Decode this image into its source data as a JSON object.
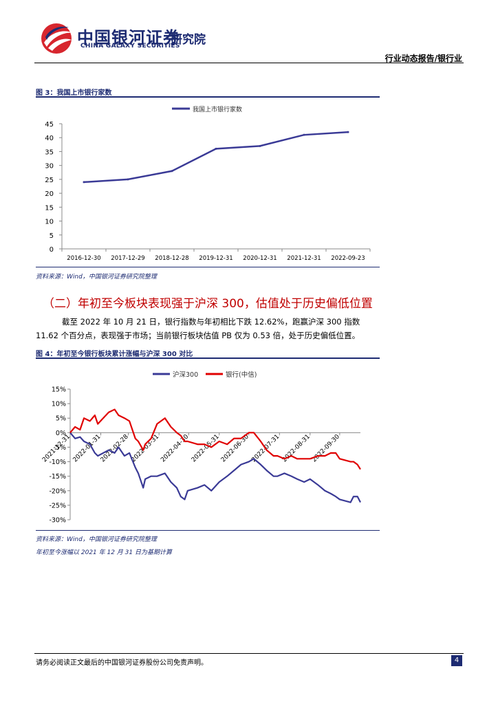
{
  "header": {
    "company_cn": "中国银河证券",
    "company_en": "CHINA GALAXY SECURITIES",
    "institute": "研究院",
    "category": "行业动态报告/银行业"
  },
  "figure3": {
    "caption": "图 3：我国上市银行家数",
    "source": "资料来源：Wind，中国银河证券研究院整理"
  },
  "section": {
    "title": "（二）年初至今板块表现强于沪深 300，估值处于历史偏低位置",
    "paragraph": "截至 2022 年 10 月 21 日，银行指数与年初相比下跌 12.62%，跑赢沪深 300 指数 11.62 个百分点，表现强于市场；当前银行板块估值 PB 仅为 0.53 倍，处于历史偏低位置。"
  },
  "figure4": {
    "caption": "图 4：年初至今银行板块累计涨幅与沪深 300 对比",
    "source": "资料来源：Wind，中国银河证券研究院整理",
    "note": "年初至今涨幅以 2021 年 12 月 31 日为基期计算"
  },
  "footer": {
    "disclaimer": "请务必阅读正文最后的中国银河证券股份公司免责声明。",
    "page": "4"
  },
  "colors": {
    "navy": "#1d2b72",
    "series_navy": "#3a3a96",
    "series_red": "#e00000",
    "logo_red": "#d7262e"
  },
  "chart_data": [
    {
      "type": "line",
      "title": "",
      "x": [
        "2016-12-30",
        "2017-12-29",
        "2018-12-28",
        "2019-12-31",
        "2020-12-31",
        "2021-12-31",
        "2022-09-23"
      ],
      "series": [
        {
          "name": "我国上市银行家数",
          "values": [
            24,
            25,
            28,
            36,
            37,
            41,
            42
          ]
        }
      ],
      "ylim": [
        0,
        45
      ],
      "yticks": [
        "0",
        "5",
        "10",
        "15",
        "20",
        "25",
        "30",
        "35",
        "40",
        "45"
      ],
      "legend": "top-center",
      "grid": false
    },
    {
      "type": "line",
      "title": "",
      "x_ticks": [
        "2021-12-31",
        "2022-01-31",
        "2022-02-28",
        "2022-03-31",
        "2022-04-30",
        "2022-05-31",
        "2022-06-30",
        "2022-07-31",
        "2022-08-31",
        "2022-09-30"
      ],
      "x_end": "2022-10-21",
      "ylim": [
        -30,
        15
      ],
      "yticks": [
        "15%",
        "10%",
        "5%",
        "0%",
        "-5%",
        "-10%",
        "-15%",
        "-20%",
        "-25%",
        "-30%"
      ],
      "legend": "top-center",
      "grid": false,
      "series": [
        {
          "name": "沪深300",
          "dates": [
            "2021-12-31",
            "2022-01-05",
            "2022-01-10",
            "2022-01-14",
            "2022-01-20",
            "2022-01-25",
            "2022-01-28",
            "2022-02-08",
            "2022-02-14",
            "2022-02-18",
            "2022-02-24",
            "2022-03-01",
            "2022-03-07",
            "2022-03-10",
            "2022-03-15",
            "2022-03-17",
            "2022-03-23",
            "2022-03-29",
            "2022-04-06",
            "2022-04-12",
            "2022-04-18",
            "2022-04-22",
            "2022-04-26",
            "2022-04-29",
            "2022-05-09",
            "2022-05-16",
            "2022-05-23",
            "2022-05-31",
            "2022-06-08",
            "2022-06-15",
            "2022-06-22",
            "2022-06-30",
            "2022-07-05",
            "2022-07-12",
            "2022-07-18",
            "2022-07-25",
            "2022-07-29",
            "2022-08-05",
            "2022-08-12",
            "2022-08-18",
            "2022-08-25",
            "2022-08-31",
            "2022-09-08",
            "2022-09-15",
            "2022-09-21",
            "2022-09-26",
            "2022-09-30",
            "2022-10-11",
            "2022-10-14",
            "2022-10-18",
            "2022-10-21"
          ],
          "values": [
            0,
            -2,
            -1.5,
            -3,
            -4,
            -7,
            -8,
            -6,
            -7,
            -5,
            -8,
            -7,
            -12,
            -14,
            -19,
            -16,
            -15,
            -15,
            -14,
            -17,
            -19,
            -22,
            -23,
            -20,
            -19,
            -18,
            -20,
            -17,
            -15,
            -13,
            -11,
            -10,
            -9,
            -11,
            -13,
            -15,
            -15,
            -14,
            -15,
            -16,
            -17,
            -16,
            -18,
            -20,
            -21,
            -22,
            -23,
            -24,
            -22,
            -22,
            -24
          ]
        },
        {
          "name": "银行(中信)",
          "dates": [
            "2021-12-31",
            "2022-01-05",
            "2022-01-10",
            "2022-01-14",
            "2022-01-20",
            "2022-01-25",
            "2022-01-28",
            "2022-02-08",
            "2022-02-14",
            "2022-02-18",
            "2022-02-24",
            "2022-03-01",
            "2022-03-07",
            "2022-03-10",
            "2022-03-15",
            "2022-03-17",
            "2022-03-23",
            "2022-03-29",
            "2022-04-06",
            "2022-04-12",
            "2022-04-18",
            "2022-04-22",
            "2022-04-26",
            "2022-04-29",
            "2022-05-09",
            "2022-05-16",
            "2022-05-23",
            "2022-05-31",
            "2022-06-08",
            "2022-06-15",
            "2022-06-22",
            "2022-06-30",
            "2022-07-05",
            "2022-07-12",
            "2022-07-18",
            "2022-07-25",
            "2022-07-29",
            "2022-08-05",
            "2022-08-12",
            "2022-08-18",
            "2022-08-25",
            "2022-08-31",
            "2022-09-08",
            "2022-09-15",
            "2022-09-21",
            "2022-09-26",
            "2022-09-30",
            "2022-10-11",
            "2022-10-14",
            "2022-10-18",
            "2022-10-21"
          ],
          "values": [
            0,
            2,
            1,
            5,
            4,
            6,
            3,
            7,
            8,
            6,
            5,
            4,
            -2,
            -3,
            -6,
            -4,
            -2,
            3,
            5,
            2,
            0,
            -1,
            -3,
            -3,
            -4,
            -4,
            -5,
            -3,
            -4,
            -2,
            -2,
            0,
            0,
            -3,
            -6,
            -8,
            -8,
            -9,
            -8,
            -9,
            -9,
            -9,
            -8,
            -8,
            -7,
            -7,
            -9,
            -10,
            -10,
            -11,
            -12.62
          ]
        }
      ]
    }
  ]
}
